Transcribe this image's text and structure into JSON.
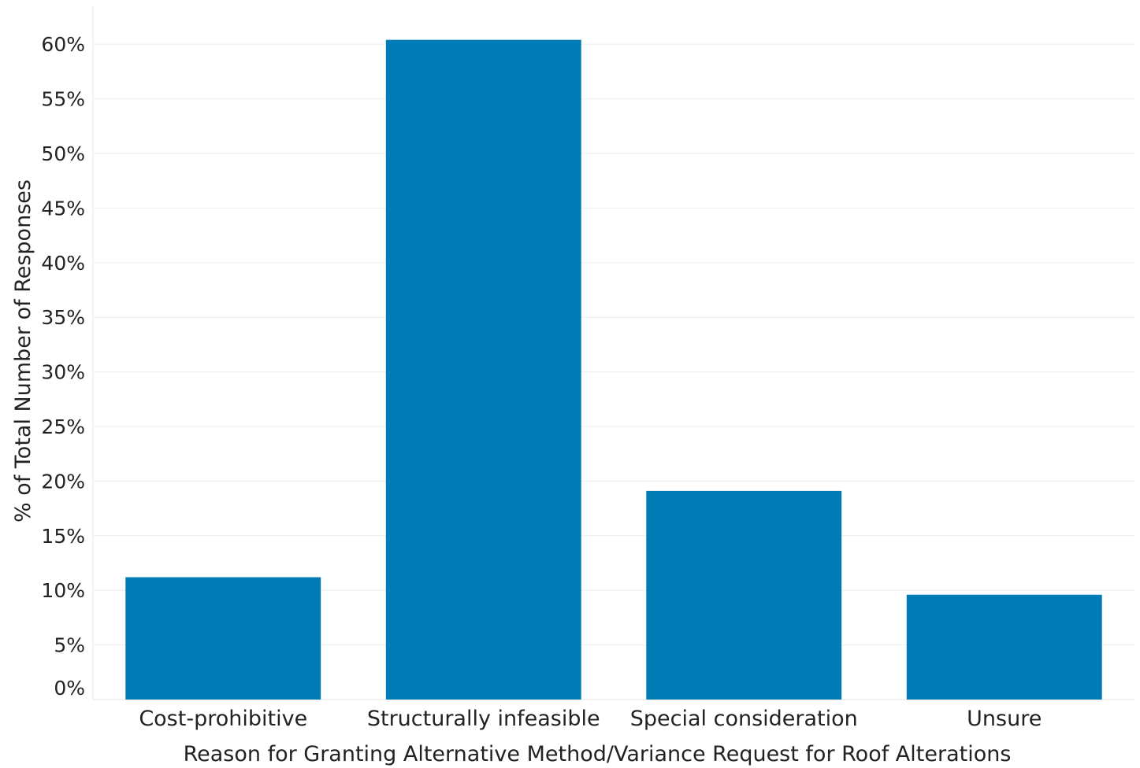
{
  "chart_data": {
    "type": "bar",
    "title": "",
    "xlabel": "Reason for Granting Alternative Method/Variance Request for Roof Alterations",
    "ylabel": "% of Total Number of Responses",
    "categories": [
      "Cost-prohibitive",
      "Structurally infeasible",
      "Special consideration",
      "Unsure"
    ],
    "values": [
      11.2,
      60.4,
      19.1,
      9.6
    ],
    "ylim": [
      0,
      60
    ],
    "yticks": [
      0,
      5,
      10,
      15,
      20,
      25,
      30,
      35,
      40,
      45,
      50,
      55,
      60
    ],
    "ytick_labels": [
      "0%",
      "5%",
      "10%",
      "15%",
      "20%",
      "25%",
      "30%",
      "35%",
      "40%",
      "45%",
      "50%",
      "55%",
      "60%"
    ],
    "grid": true,
    "bar_color": "#007bb6"
  }
}
